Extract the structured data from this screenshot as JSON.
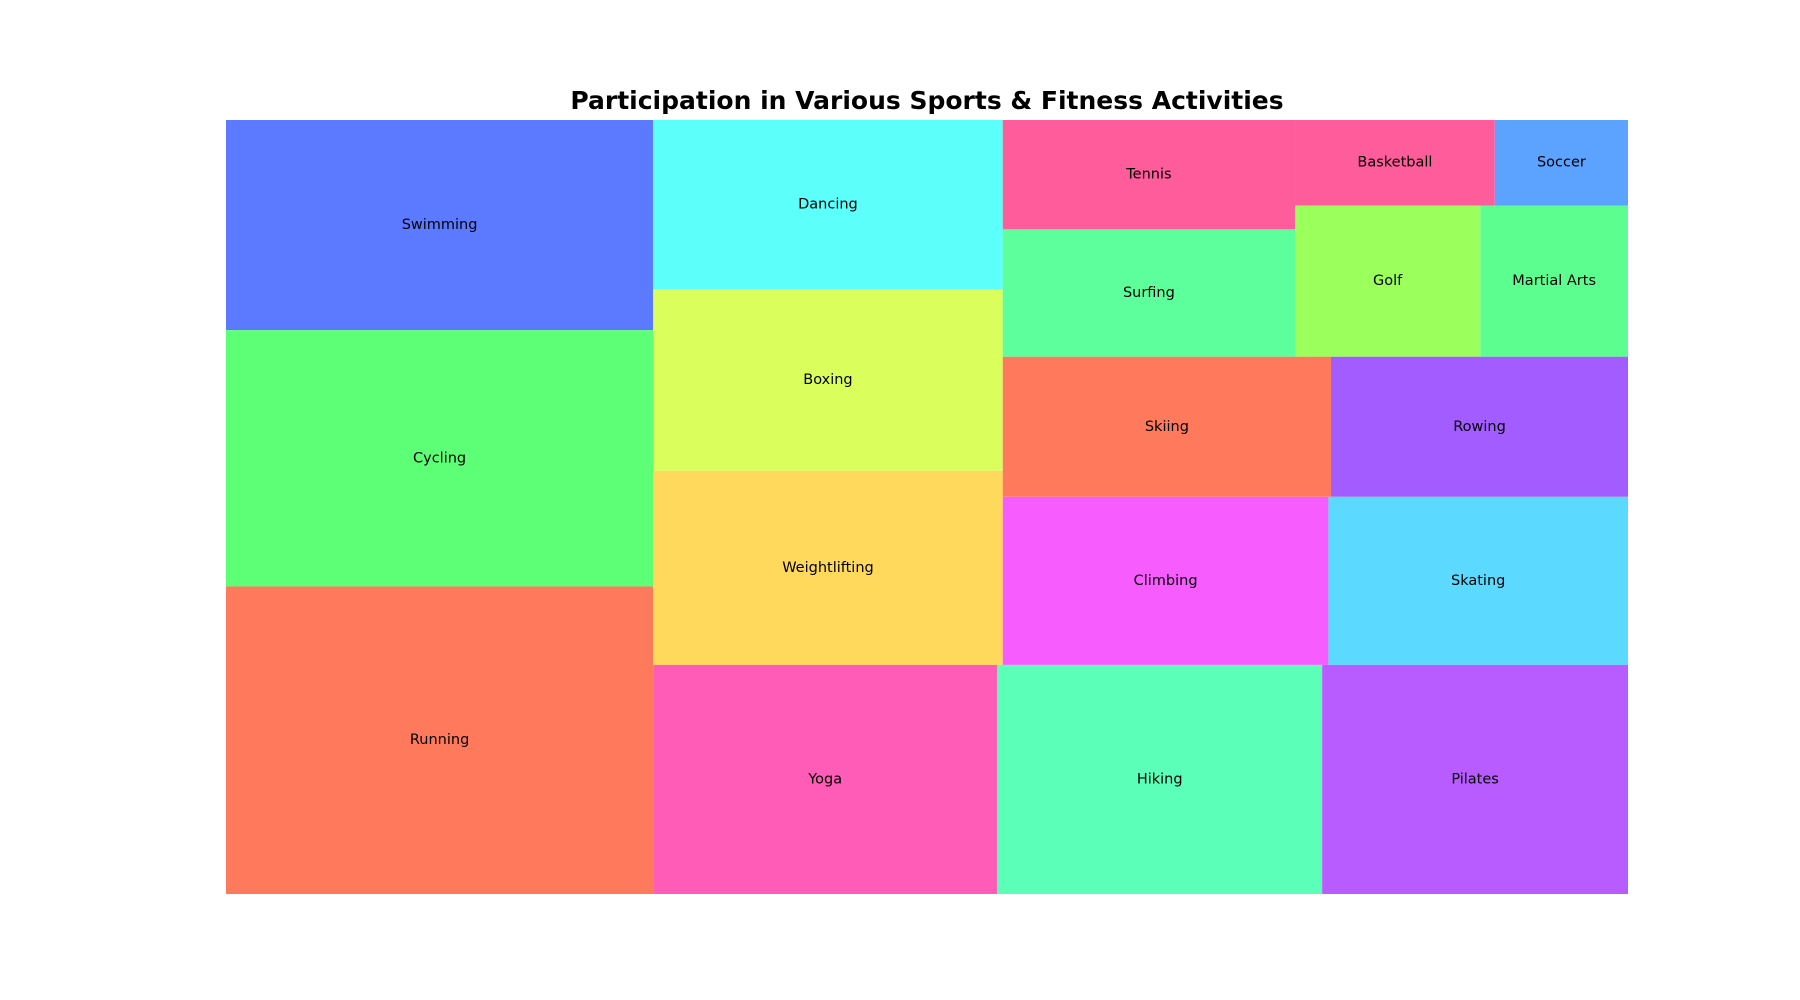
{
  "chart_data": {
    "type": "treemap",
    "title": "Participation in Various Sports & Fitness Activities",
    "items": [
      {
        "label": "Running",
        "value": 30,
        "color": "#FF7A5C"
      },
      {
        "label": "Cycling",
        "value": 25,
        "color": "#5CFF75"
      },
      {
        "label": "Swimming",
        "value": 20.5,
        "color": "#5C7AFF"
      },
      {
        "label": "Yoga",
        "value": 18,
        "color": "#FF5CB8"
      },
      {
        "label": "Hiking",
        "value": 17,
        "color": "#5CFFB8"
      },
      {
        "label": "Pilates",
        "value": 16,
        "color": "#B85CFF"
      },
      {
        "label": "Weightlifting",
        "value": 15.5,
        "color": "#FFD95C"
      },
      {
        "label": "Boxing",
        "value": 14.5,
        "color": "#DAFF5C"
      },
      {
        "label": "Dancing",
        "value": 13.5,
        "color": "#5CFFFA"
      },
      {
        "label": "Climbing",
        "value": 12.5,
        "color": "#F75CFF"
      },
      {
        "label": "Skating",
        "value": 11.5,
        "color": "#5CD9FF"
      },
      {
        "label": "Skiing",
        "value": 10.5,
        "color": "#FF7A5C"
      },
      {
        "label": "Rowing",
        "value": 9.5,
        "color": "#A35CFF"
      },
      {
        "label": "Surfing",
        "value": 8.5,
        "color": "#5CFF9B"
      },
      {
        "label": "Golf",
        "value": 6.4,
        "color": "#9BFF5C"
      },
      {
        "label": "Martial Arts",
        "value": 5.1,
        "color": "#5CFF8F"
      },
      {
        "label": "Tennis",
        "value": 7.3,
        "color": "#FF5C9B"
      },
      {
        "label": "Basketball",
        "value": 3.9,
        "color": "#FF5C9B"
      },
      {
        "label": "Soccer",
        "value": 2.6,
        "color": "#5CA3FF"
      }
    ]
  }
}
